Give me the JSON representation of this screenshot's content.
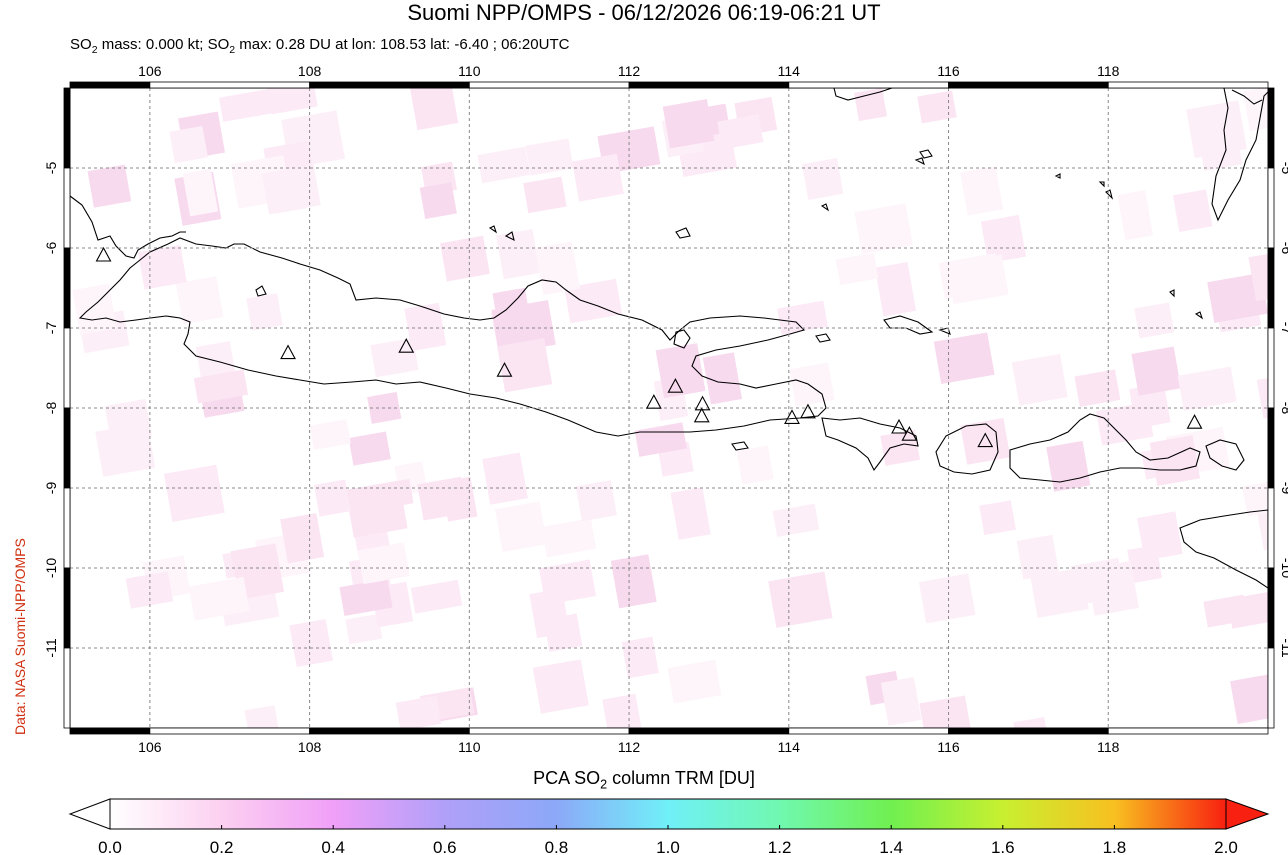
{
  "title": "Suomi NPP/OMPS - 06/12/2026 06:19-06:21 UT",
  "subtitle": {
    "part1": "SO",
    "sub1": "2",
    "part2": " mass: 0.000 kt; SO",
    "sub2": "2",
    "part3": " max: 0.28 DU at lon: 108.53 lat: -6.40 ; 06:20UTC"
  },
  "credit": "Data: NASA Suomi-NPP/OMPS",
  "map": {
    "lon_range": [
      105.0,
      120.0
    ],
    "lat_range": [
      -12.0,
      -4.0
    ],
    "lon_ticks": [
      106,
      108,
      110,
      112,
      114,
      116,
      118
    ],
    "lat_ticks": [
      -5,
      -6,
      -7,
      -8,
      -9,
      -10,
      -11
    ],
    "lon_tick_labels": [
      "106",
      "108",
      "110",
      "112",
      "114",
      "116",
      "118"
    ],
    "lat_tick_labels": [
      "-5",
      "-6",
      "-7",
      "-8",
      "-9",
      "-10",
      "-11"
    ],
    "volcanoes": [
      [
        105.42,
        -6.1
      ],
      [
        107.73,
        -7.32
      ],
      [
        109.21,
        -7.24
      ],
      [
        110.44,
        -7.54
      ],
      [
        112.31,
        -7.94
      ],
      [
        112.58,
        -7.74
      ],
      [
        112.92,
        -7.96
      ],
      [
        112.91,
        -8.11
      ],
      [
        114.04,
        -8.13
      ],
      [
        114.24,
        -8.06
      ],
      [
        115.38,
        -8.25
      ],
      [
        115.51,
        -8.34
      ],
      [
        116.46,
        -8.42
      ],
      [
        119.08,
        -8.19
      ]
    ]
  },
  "colorbar": {
    "title_pre": "PCA SO",
    "title_sub": "2",
    "title_post": " column TRM [DU]",
    "min": 0.0,
    "max": 2.0,
    "tick_labels": [
      "0.0",
      "0.2",
      "0.4",
      "0.6",
      "0.8",
      "1.0",
      "1.2",
      "1.4",
      "1.6",
      "1.8",
      "2.0"
    ],
    "colors": [
      "#ffffff",
      "#fcd0f0",
      "#f0a0f8",
      "#b0a0f8",
      "#8ca8f8",
      "#70f0f8",
      "#70f8b0",
      "#70f050",
      "#c8f030",
      "#f8c020",
      "#f82010"
    ]
  }
}
